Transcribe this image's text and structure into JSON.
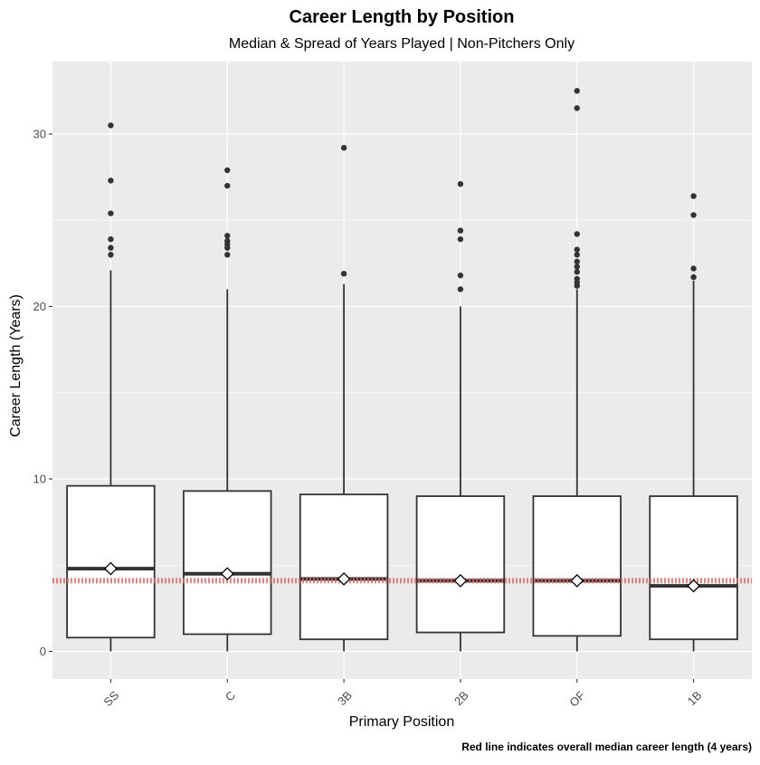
{
  "chart_data": {
    "type": "boxplot",
    "title": "Career Length by Position",
    "subtitle": "Median & Spread of Years Played | Non-Pitchers Only",
    "xlabel": "Primary Position",
    "ylabel": "Career Length (Years)",
    "caption": "Red line indicates overall median career length (4 years)",
    "ylim": [
      -1.6,
      34.2
    ],
    "y_ticks": [
      0,
      10,
      20,
      30
    ],
    "grid": true,
    "reference_line": {
      "y": 4.1,
      "color": "#e06666",
      "style": "dotted"
    },
    "colors": {
      "panel": "#ebebeb",
      "grid_major": "#ffffff",
      "box_fill": "#ffffff",
      "box_stroke": "#333333",
      "median": "#333333",
      "outlier": "#333333",
      "mean_marker": "#ffffff"
    },
    "categories": [
      "SS",
      "C",
      "3B",
      "2B",
      "OF",
      "1B"
    ],
    "boxes": [
      {
        "category": "SS",
        "min": 0,
        "q1": 0.8,
        "median": 4.8,
        "q3": 9.6,
        "max": 22.1,
        "mean": 4.8,
        "outliers": [
          23.0,
          23.4,
          23.9,
          25.4,
          27.3,
          30.5
        ]
      },
      {
        "category": "C",
        "min": 0,
        "q1": 1.0,
        "median": 4.5,
        "q3": 9.3,
        "max": 21.0,
        "mean": 4.5,
        "outliers": [
          23.0,
          23.4,
          23.6,
          23.8,
          24.1,
          27.0,
          27.9
        ]
      },
      {
        "category": "3B",
        "min": 0,
        "q1": 0.7,
        "median": 4.2,
        "q3": 9.1,
        "max": 21.3,
        "mean": 4.2,
        "outliers": [
          21.9,
          29.2
        ]
      },
      {
        "category": "2B",
        "min": 0,
        "q1": 1.1,
        "median": 4.1,
        "q3": 9.0,
        "max": 20.0,
        "mean": 4.1,
        "outliers": [
          21.0,
          21.8,
          23.9,
          24.4,
          27.1
        ]
      },
      {
        "category": "OF",
        "min": 0,
        "q1": 0.9,
        "median": 4.1,
        "q3": 9.0,
        "max": 21.0,
        "mean": 4.1,
        "outliers": [
          21.2,
          21.4,
          21.6,
          22.0,
          22.3,
          22.6,
          23.0,
          23.3,
          24.2,
          31.5,
          32.5
        ]
      },
      {
        "category": "1B",
        "min": 0,
        "q1": 0.7,
        "median": 3.8,
        "q3": 9.0,
        "max": 21.5,
        "mean": 3.8,
        "outliers": [
          21.7,
          22.2,
          25.3,
          26.4
        ]
      }
    ]
  }
}
